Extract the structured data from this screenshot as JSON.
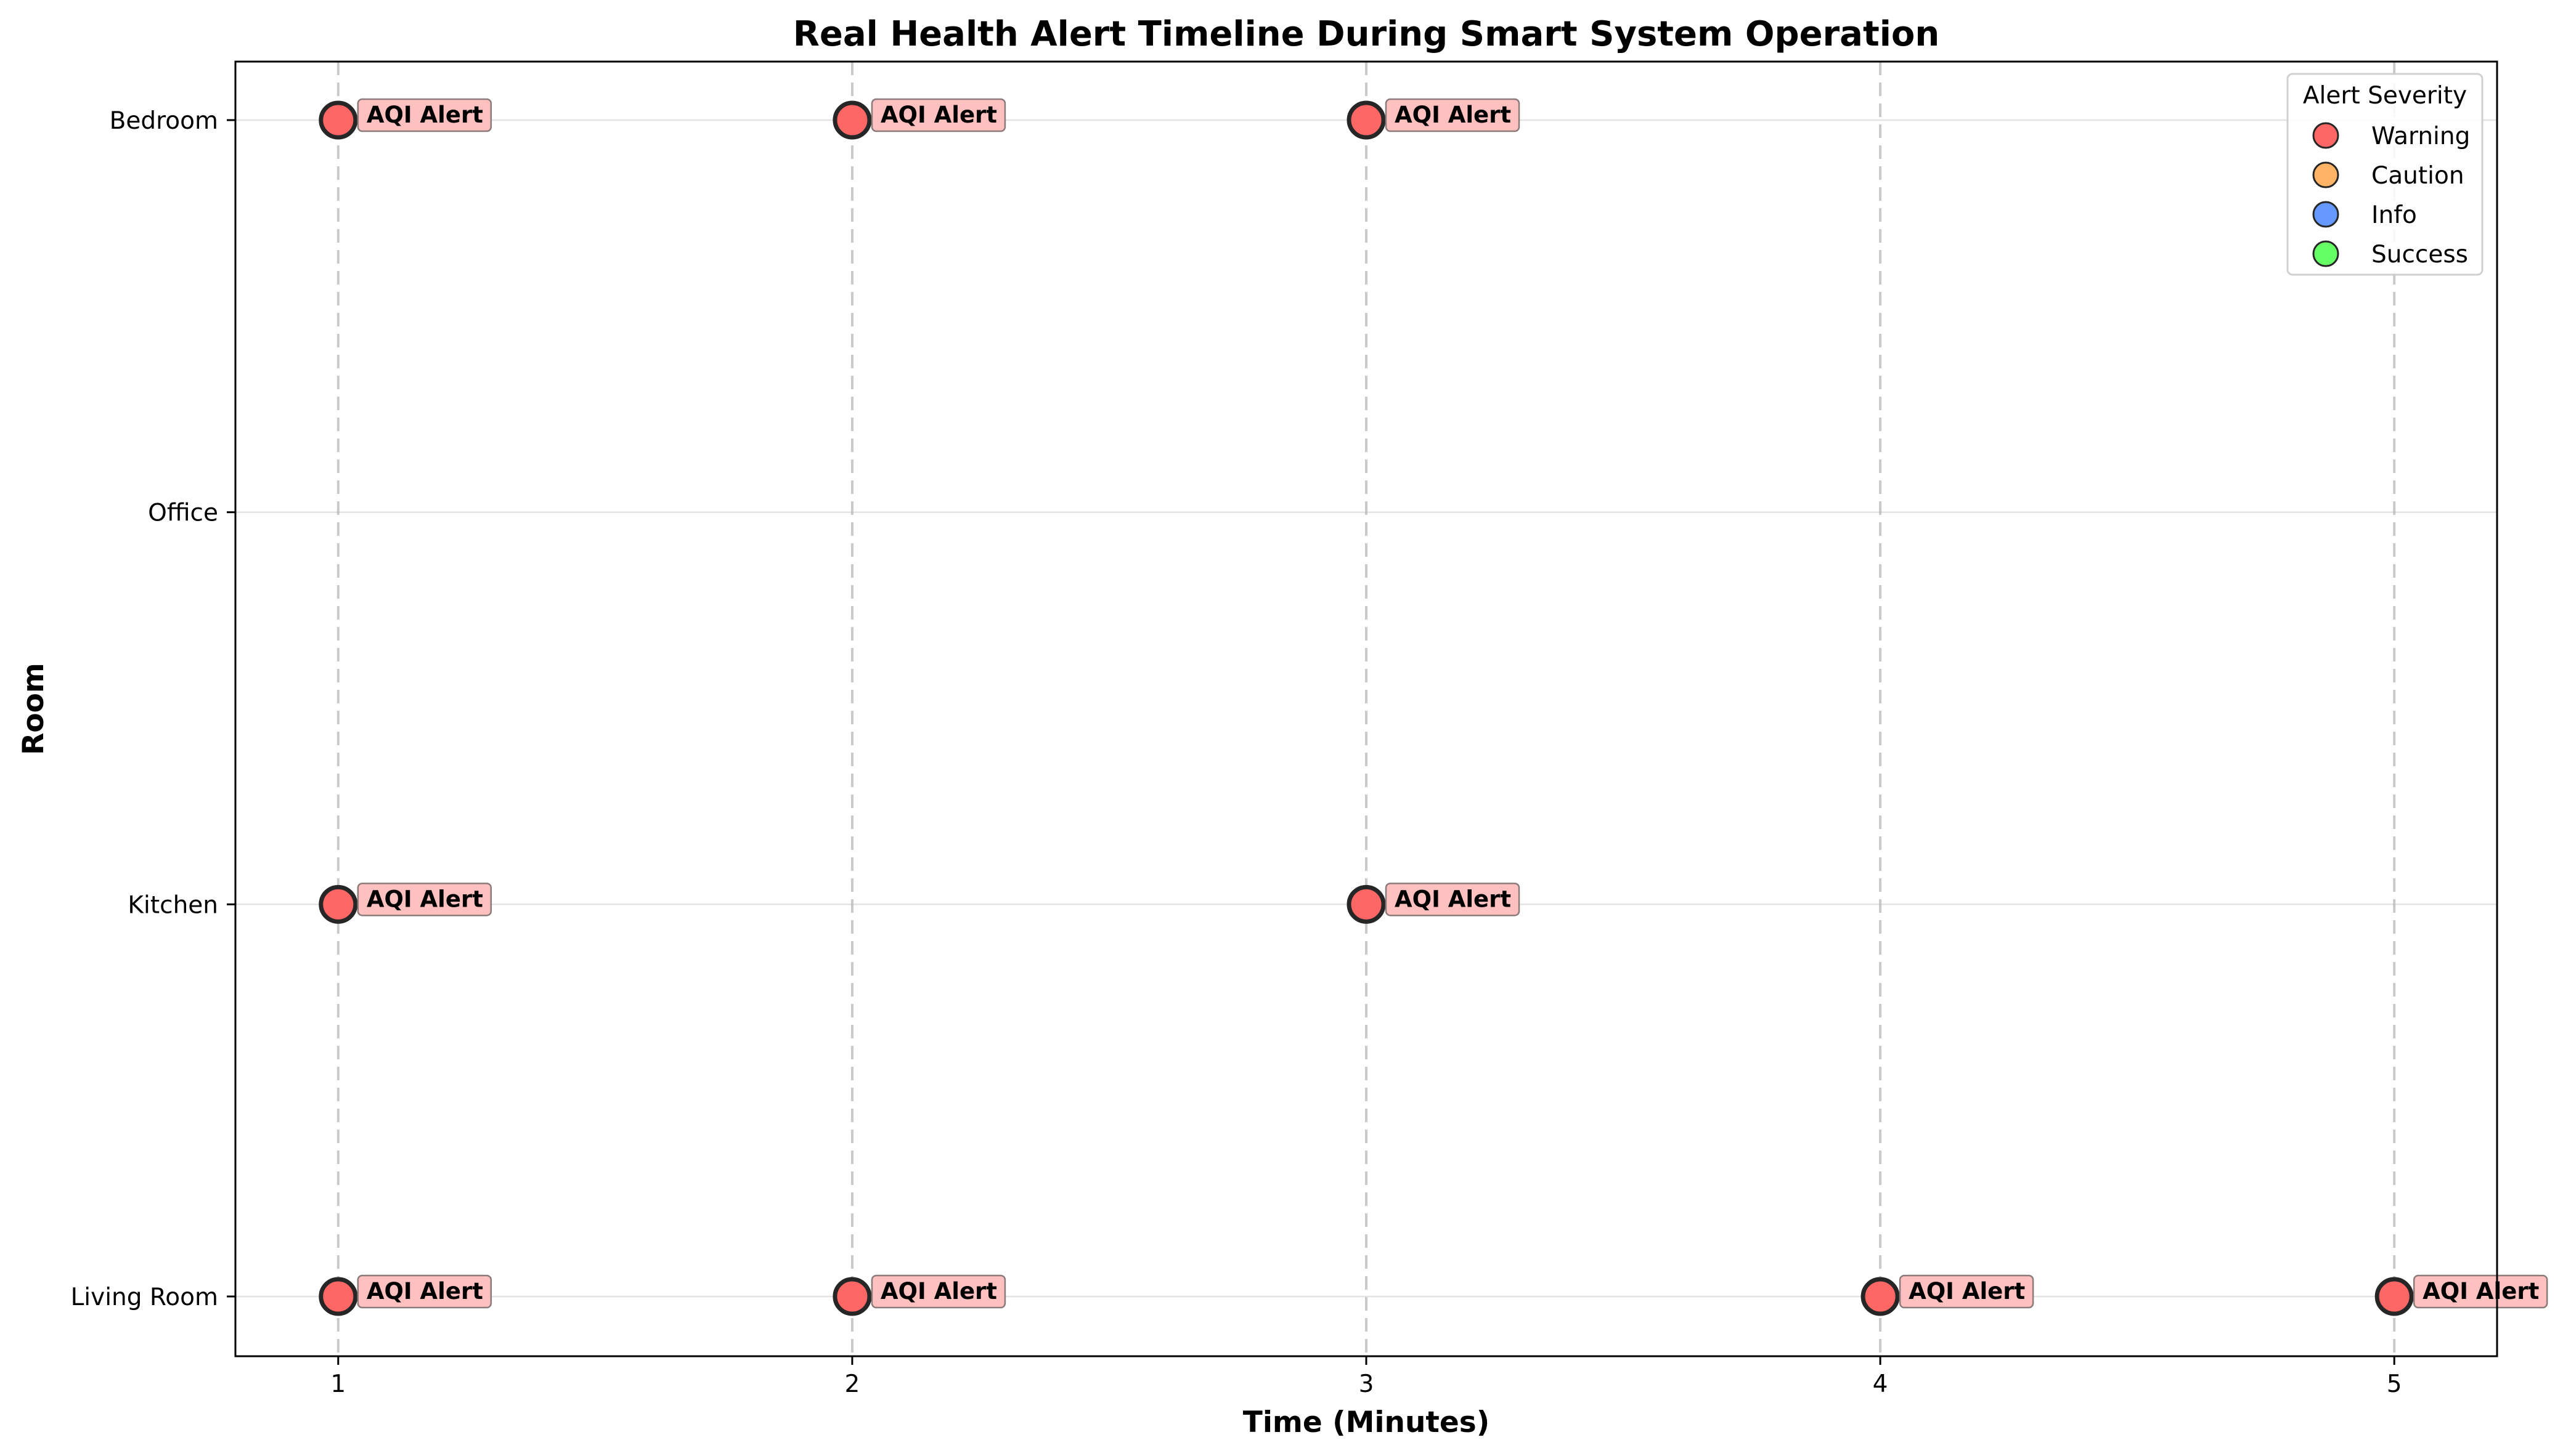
{
  "chart_data": {
    "type": "scatter",
    "title": "Real Health Alert Timeline During Smart System Operation",
    "xlabel": "Time (Minutes)",
    "ylabel": "Room",
    "x_ticks": [
      1,
      2,
      3,
      4,
      5
    ],
    "xlim": [
      0.8,
      5.2
    ],
    "y_categories": [
      "Living Room",
      "Kitchen",
      "Office",
      "Bedroom"
    ],
    "grid": "horizontal gridlines on, vertical dashed lines at each minute",
    "legend": {
      "title": "Alert Severity",
      "placement": "top-right",
      "entries": [
        {
          "name": "Warning",
          "color": "#ff6666"
        },
        {
          "name": "Caution",
          "color": "#ffb366"
        },
        {
          "name": "Info",
          "color": "#6699ff"
        },
        {
          "name": "Success",
          "color": "#66ff66"
        }
      ]
    },
    "annotation_bg": "#ffc0c0",
    "series": [
      {
        "name": "Warning",
        "color": "#ff6666",
        "points": [
          {
            "x": 1,
            "room": "Bedroom",
            "label": "AQI Alert"
          },
          {
            "x": 2,
            "room": "Bedroom",
            "label": "AQI Alert"
          },
          {
            "x": 3,
            "room": "Bedroom",
            "label": "AQI Alert"
          },
          {
            "x": 1,
            "room": "Kitchen",
            "label": "AQI Alert"
          },
          {
            "x": 3,
            "room": "Kitchen",
            "label": "AQI Alert"
          },
          {
            "x": 1,
            "room": "Living Room",
            "label": "AQI Alert"
          },
          {
            "x": 2,
            "room": "Living Room",
            "label": "AQI Alert"
          },
          {
            "x": 4,
            "room": "Living Room",
            "label": "AQI Alert"
          },
          {
            "x": 5,
            "room": "Living Room",
            "label": "AQI Alert"
          }
        ]
      }
    ]
  }
}
